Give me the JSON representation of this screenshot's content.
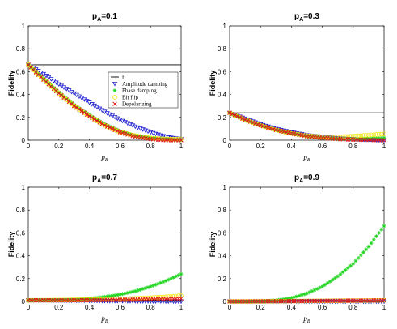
{
  "chart_data": [
    {
      "type": "scatter",
      "title_base": "p",
      "title_sub": "A",
      "title_value": "=0.1",
      "xlabel": "p",
      "xlabel_sub": "B",
      "ylabel": "Fidelity",
      "xlim": [
        0,
        1
      ],
      "ylim": [
        0,
        1
      ],
      "xticks": [
        "0",
        "0.2",
        "0.4",
        "0.6",
        "0.8",
        "1"
      ],
      "yticks": [
        "0",
        "0.2",
        "0.4",
        "0.6",
        "0.8",
        "1"
      ],
      "legend": {
        "placement": "right",
        "entries": [
          "f",
          "Amplitude damping",
          "Phase damping",
          "Bit flip",
          "Depolarizing"
        ]
      },
      "x": [
        0,
        0.1,
        0.2,
        0.3,
        0.4,
        0.5,
        0.6,
        0.7,
        0.8,
        0.9,
        1
      ],
      "reference_line": 0.66,
      "series": [
        {
          "name": "Amplitude damping",
          "marker": "triangle-down",
          "color": "#1f1fd0",
          "values": [
            0.66,
            0.58,
            0.49,
            0.41,
            0.33,
            0.25,
            0.18,
            0.12,
            0.07,
            0.03,
            0.01
          ]
        },
        {
          "name": "Phase damping",
          "marker": "asterisk",
          "color": "#1fd51f",
          "values": [
            0.66,
            0.54,
            0.42,
            0.31,
            0.22,
            0.14,
            0.08,
            0.04,
            0.02,
            0.01,
            0.0
          ]
        },
        {
          "name": "Bit flip",
          "marker": "circle",
          "color": "#f2e600",
          "values": [
            0.66,
            0.53,
            0.41,
            0.3,
            0.21,
            0.13,
            0.07,
            0.04,
            0.02,
            0.01,
            0.01
          ]
        },
        {
          "name": "Depolarizing",
          "marker": "x",
          "color": "#e01a1a",
          "values": [
            0.66,
            0.53,
            0.41,
            0.3,
            0.21,
            0.13,
            0.07,
            0.03,
            0.01,
            0.0,
            0.0
          ]
        }
      ]
    },
    {
      "type": "scatter",
      "title_base": "p",
      "title_sub": "A",
      "title_value": "=0.3",
      "xlabel": "p",
      "xlabel_sub": "B",
      "ylabel": "Fidelity",
      "xlim": [
        0,
        1
      ],
      "ylim": [
        0,
        1
      ],
      "xticks": [
        "0",
        "0.2",
        "0.4",
        "0.6",
        "0.8",
        "1"
      ],
      "yticks": [
        "0",
        "0.2",
        "0.4",
        "0.6",
        "0.8",
        "1"
      ],
      "x": [
        0,
        0.1,
        0.2,
        0.3,
        0.4,
        0.5,
        0.6,
        0.7,
        0.8,
        0.9,
        1
      ],
      "reference_line": 0.24,
      "series": [
        {
          "name": "Amplitude damping",
          "marker": "triangle-down",
          "color": "#1f1fd0",
          "values": [
            0.24,
            0.19,
            0.14,
            0.1,
            0.07,
            0.045,
            0.03,
            0.018,
            0.01,
            0.005,
            0.0
          ]
        },
        {
          "name": "Phase damping",
          "marker": "asterisk",
          "color": "#1fd51f",
          "values": [
            0.24,
            0.18,
            0.13,
            0.09,
            0.06,
            0.035,
            0.02,
            0.012,
            0.01,
            0.015,
            0.02
          ]
        },
        {
          "name": "Bit flip",
          "marker": "circle",
          "color": "#f2e600",
          "values": [
            0.24,
            0.18,
            0.13,
            0.09,
            0.06,
            0.04,
            0.03,
            0.03,
            0.035,
            0.045,
            0.055
          ]
        },
        {
          "name": "Depolarizing",
          "marker": "x",
          "color": "#e01a1a",
          "values": [
            0.24,
            0.18,
            0.13,
            0.09,
            0.06,
            0.035,
            0.02,
            0.01,
            0.005,
            0.002,
            0.0
          ]
        }
      ]
    },
    {
      "type": "scatter",
      "title_base": "p",
      "title_sub": "A",
      "title_value": "=0.7",
      "xlabel": "p",
      "xlabel_sub": "B",
      "ylabel": "Fidelity",
      "xlim": [
        0,
        1
      ],
      "ylim": [
        0,
        1
      ],
      "xticks": [
        "0",
        "0.2",
        "0.4",
        "0.6",
        "0.8",
        "1"
      ],
      "yticks": [
        "0",
        "0.2",
        "0.4",
        "0.6",
        "0.8",
        "1"
      ],
      "x": [
        0,
        0.1,
        0.2,
        0.3,
        0.4,
        0.5,
        0.6,
        0.7,
        0.8,
        0.9,
        1
      ],
      "reference_line": 0.01,
      "series": [
        {
          "name": "Amplitude damping",
          "marker": "triangle-down",
          "color": "#1f1fd0",
          "values": [
            0.01,
            0.01,
            0.009,
            0.008,
            0.007,
            0.005,
            0.004,
            0.003,
            0.002,
            0.001,
            0.0
          ]
        },
        {
          "name": "Phase damping",
          "marker": "asterisk",
          "color": "#1fd51f",
          "values": [
            0.01,
            0.011,
            0.013,
            0.017,
            0.025,
            0.04,
            0.06,
            0.09,
            0.13,
            0.18,
            0.24
          ]
        },
        {
          "name": "Bit flip",
          "marker": "circle",
          "color": "#f2e600",
          "values": [
            0.01,
            0.011,
            0.012,
            0.014,
            0.016,
            0.019,
            0.022,
            0.027,
            0.033,
            0.04,
            0.05
          ]
        },
        {
          "name": "Depolarizing",
          "marker": "x",
          "color": "#e01a1a",
          "values": [
            0.01,
            0.01,
            0.01,
            0.01,
            0.011,
            0.012,
            0.014,
            0.016,
            0.019,
            0.022,
            0.025
          ]
        }
      ]
    },
    {
      "type": "scatter",
      "title_base": "p",
      "title_sub": "A",
      "title_value": "=0.9",
      "xlabel": "p",
      "xlabel_sub": "B",
      "ylabel": "Fidelity",
      "xlim": [
        0,
        1
      ],
      "ylim": [
        0,
        1
      ],
      "xticks": [
        "0",
        "0.2",
        "0.4",
        "0.6",
        "0.8",
        "1"
      ],
      "yticks": [
        "0",
        "0.2",
        "0.4",
        "0.6",
        "0.8",
        "1"
      ],
      "x": [
        0,
        0.1,
        0.2,
        0.3,
        0.4,
        0.5,
        0.6,
        0.7,
        0.8,
        0.9,
        1
      ],
      "reference_line": 0.0,
      "series": [
        {
          "name": "Amplitude damping",
          "marker": "triangle-down",
          "color": "#1f1fd0",
          "values": [
            0.0,
            0.0,
            0.0,
            0.0,
            0.0,
            0.0,
            0.0,
            0.0,
            0.0,
            0.0,
            0.0
          ]
        },
        {
          "name": "Phase damping",
          "marker": "asterisk",
          "color": "#1fd51f",
          "values": [
            0.0,
            0.0,
            0.002,
            0.01,
            0.03,
            0.07,
            0.13,
            0.22,
            0.33,
            0.48,
            0.66
          ]
        },
        {
          "name": "Bit flip",
          "marker": "circle",
          "color": "#f2e600",
          "values": [
            0.0,
            0.0,
            0.001,
            0.002,
            0.003,
            0.004,
            0.005,
            0.006,
            0.007,
            0.008,
            0.01
          ]
        },
        {
          "name": "Depolarizing",
          "marker": "x",
          "color": "#e01a1a",
          "values": [
            0.0,
            0.0,
            0.001,
            0.002,
            0.003,
            0.004,
            0.005,
            0.006,
            0.007,
            0.008,
            0.01
          ]
        }
      ]
    }
  ]
}
